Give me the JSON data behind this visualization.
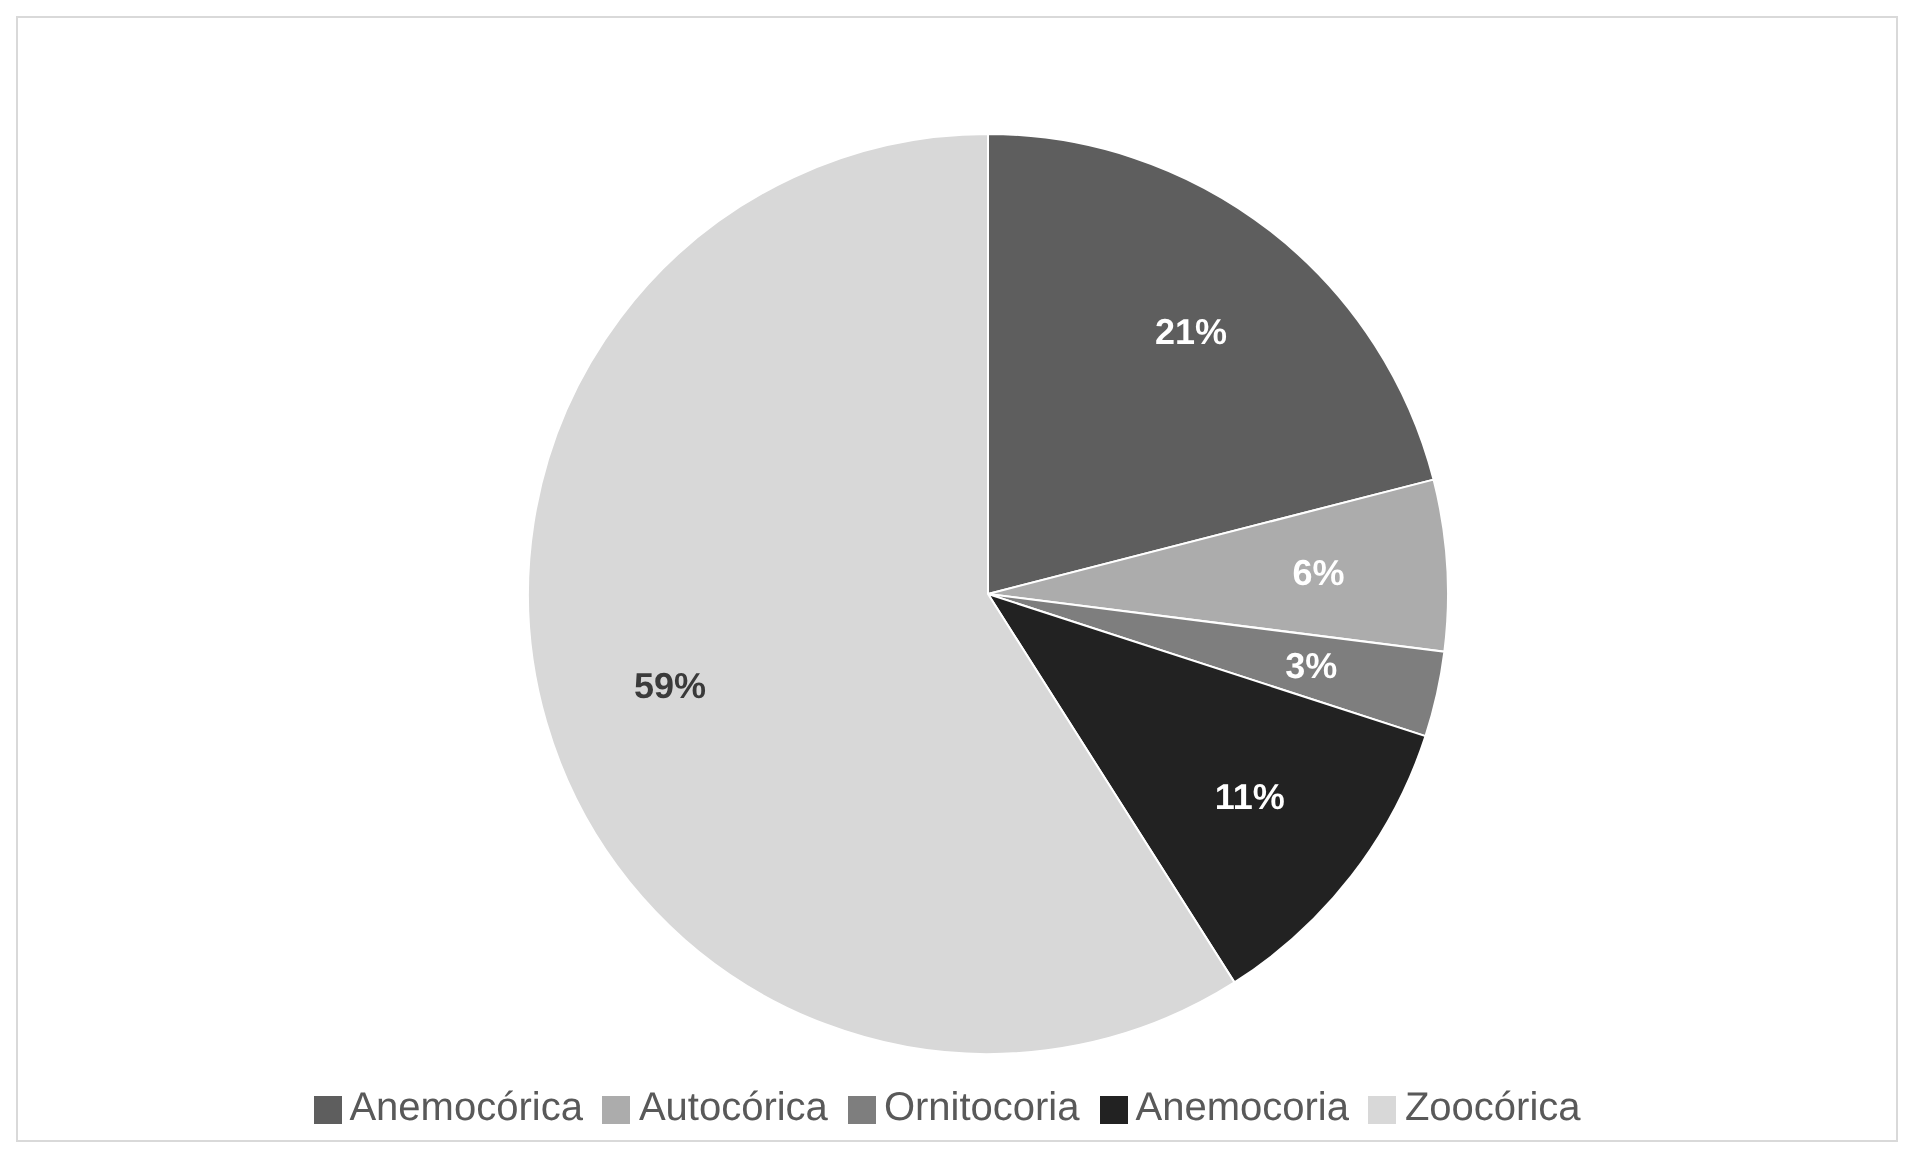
{
  "chart_data": {
    "type": "pie",
    "categories": [
      "Anemocórica",
      "Autocórica",
      "Ornitocoria",
      "Anemocoria",
      "Zoocórica"
    ],
    "values": [
      21,
      6,
      3,
      11,
      59
    ],
    "value_labels": [
      "21%",
      "6%",
      "3%",
      "11%",
      "59%"
    ],
    "colors": [
      "#5e5e5e",
      "#acacac",
      "#7e7e7e",
      "#222222",
      "#d8d8d8"
    ],
    "legend": "bottom"
  }
}
